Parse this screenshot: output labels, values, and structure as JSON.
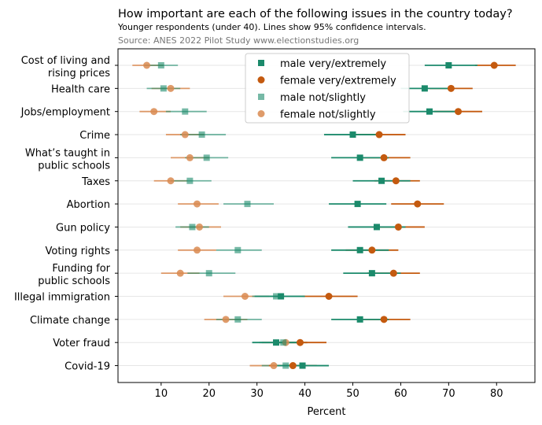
{
  "chart_data": {
    "type": "scatter",
    "title": "How important are each of the following issues in the country today?",
    "subtitle": "Younger respondents (under 40). Lines show 95% confidence intervals.",
    "source": "Source: ANES 2022 Pilot Study www.electionstudies.org",
    "xlabel": "Percent",
    "xlim": [
      1,
      88
    ],
    "xticks": [
      10,
      20,
      30,
      40,
      50,
      60,
      70,
      80
    ],
    "grid": "horizontal",
    "legend_position": "top-center",
    "categories": [
      "Cost of living and\nrising prices",
      "Health care",
      "Jobs/employment",
      "Crime",
      "What’s taught in\npublic schools",
      "Taxes",
      "Abortion",
      "Gun policy",
      "Voting rights",
      "Funding for\npublic schools",
      "Illegal immigration",
      "Climate change",
      "Voter fraud",
      "Covid-19"
    ],
    "series": [
      {
        "name": "male very/extremely",
        "color": "#1b8a6b",
        "marker": "square",
        "opacity": 1.0,
        "values": [
          70,
          65,
          66,
          50,
          51.5,
          56,
          51,
          55,
          51.5,
          54,
          35,
          51.5,
          34,
          39.5
        ],
        "ci_low": [
          65,
          60,
          60.5,
          44,
          45.5,
          50,
          45,
          49,
          45.5,
          48,
          29.5,
          45.5,
          29,
          34
        ],
        "ci_high": [
          76,
          71,
          71.5,
          56,
          57.5,
          62,
          57,
          61,
          57.5,
          60,
          40,
          57.5,
          39.5,
          45
        ]
      },
      {
        "name": "female very/extremely",
        "color": "#c45a0f",
        "marker": "circle",
        "opacity": 1.0,
        "values": [
          79.5,
          70.5,
          72,
          55.5,
          56.5,
          59,
          63.5,
          59.5,
          54,
          58.5,
          45,
          56.5,
          39,
          37.5
        ],
        "ci_low": [
          75.5,
          66,
          67,
          50,
          51,
          54.5,
          58,
          54,
          48.5,
          53,
          39.5,
          51,
          33.5,
          32.5
        ],
        "ci_high": [
          84,
          75,
          77,
          61,
          62,
          64,
          69,
          65,
          59.5,
          64,
          51,
          62,
          44.5,
          42.5
        ]
      },
      {
        "name": "male not/slightly",
        "color": "#1b8a6b",
        "marker": "square",
        "opacity": 0.6,
        "values": [
          10,
          10.5,
          15,
          18.5,
          19.5,
          16,
          28,
          16.5,
          26,
          20,
          34,
          26,
          35.5,
          36
        ],
        "ci_low": [
          6.5,
          7,
          11,
          14,
          15,
          12,
          23,
          13,
          21.5,
          15.5,
          29,
          21.5,
          30.5,
          31
        ],
        "ci_high": [
          13.5,
          14,
          19.5,
          23.5,
          24,
          20.5,
          33.5,
          20,
          31,
          25.5,
          39.5,
          31,
          40.5,
          41
        ]
      },
      {
        "name": "female not/slightly",
        "color": "#d98a50",
        "marker": "circle",
        "opacity": 0.85,
        "values": [
          7,
          12,
          8.5,
          15,
          16,
          12,
          17.5,
          18,
          17.5,
          14,
          27.5,
          23.5,
          36,
          33.5
        ],
        "ci_low": [
          4,
          8,
          5.5,
          11,
          12,
          8.5,
          13.5,
          14,
          13.5,
          10,
          23,
          19,
          31,
          28.5
        ],
        "ci_high": [
          10.5,
          16,
          12,
          19,
          20,
          15.5,
          22,
          22.5,
          21.5,
          18,
          32.5,
          28,
          40.5,
          38.5
        ]
      }
    ]
  }
}
